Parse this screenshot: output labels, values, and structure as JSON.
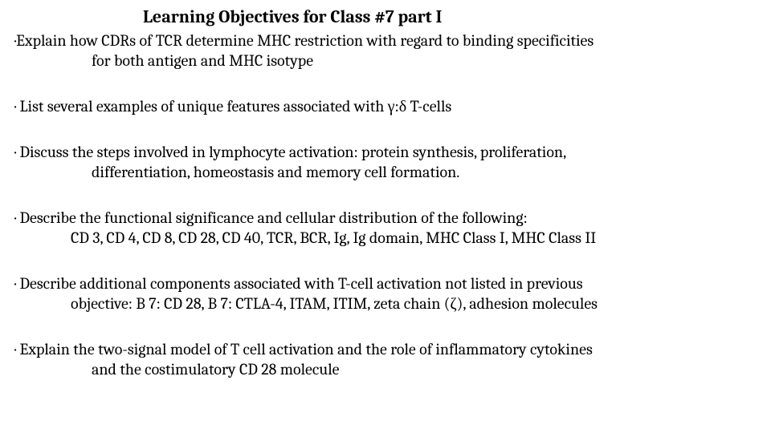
{
  "title": "Learning Objectives for Class #7 part I",
  "objectives": [
    {
      "line1": "·Explain how CDRs of TCR determine MHC restriction with regard to binding specificities",
      "line2": "for both antigen and MHC isotype"
    },
    {
      "line1": "· List several examples of unique features associated with γ:δ T-cells",
      "line2": ""
    },
    {
      "line1": "· Discuss the steps involved in lymphocyte activation: protein synthesis, proliferation,",
      "line2": "differentiation, homeostasis and memory cell formation."
    },
    {
      "line1": "· Describe the functional significance and cellular distribution of the following:",
      "line2": "CD 3, CD 4, CD 8, CD 28, CD 40, TCR, BCR, Ig, Ig domain, MHC Class I, MHC Class II"
    },
    {
      "line1": "· Describe additional components associated with T-cell activation not listed in previous",
      "line2": "objective: B 7: CD 28,  B 7: CTLA-4, ITAM, ITIM, zeta chain (ζ), adhesion molecules"
    },
    {
      "line1": "· Explain the two-signal model of T cell activation and the role of inflammatory cytokines",
      "line2": "and the costimulatory CD 28 molecule"
    }
  ],
  "styles": {
    "background_color": "#ffffff",
    "text_color": "#000000",
    "title_fontsize": 22,
    "body_fontsize": 20,
    "font_family": "Cambria, Georgia, serif"
  }
}
